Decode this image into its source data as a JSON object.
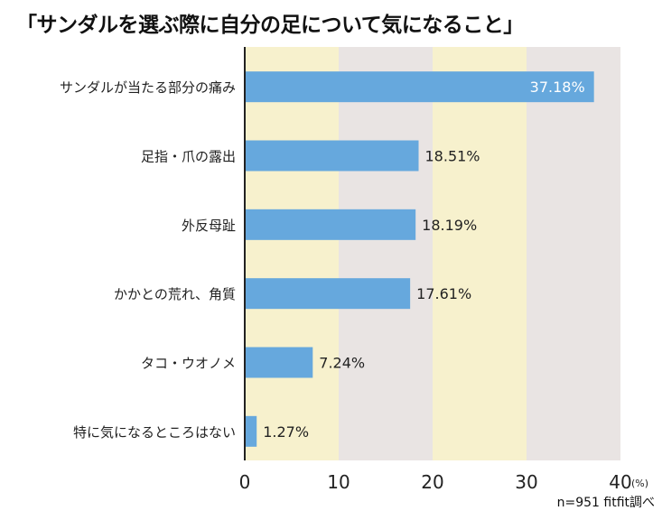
{
  "chart_data": {
    "type": "bar",
    "orientation": "horizontal",
    "title": "「サンダルを選ぶ際に自分の足について気になること」",
    "categories": [
      "サンダルが当たる部分の痛み",
      "足指・爪の露出",
      "外反母趾",
      "かかとの荒れ、角質",
      "タコ・ウオノメ",
      "特に気になるところはない"
    ],
    "values": [
      37.18,
      18.51,
      18.19,
      17.61,
      7.24,
      1.27
    ],
    "data_labels": [
      "37.18%",
      "18.51%",
      "18.19%",
      "17.61%",
      "7.24%",
      "1.27%"
    ],
    "xlim": [
      0,
      40
    ],
    "xticks": [
      "0",
      "10",
      "20",
      "30",
      "40"
    ],
    "xunit": "(%)",
    "background_bands": true,
    "colors": {
      "bar": "#66a8dd",
      "band_yellow": "#f7f1cd",
      "band_gray": "#e9e4e3"
    },
    "note": "n=951  fitfit調べ"
  }
}
